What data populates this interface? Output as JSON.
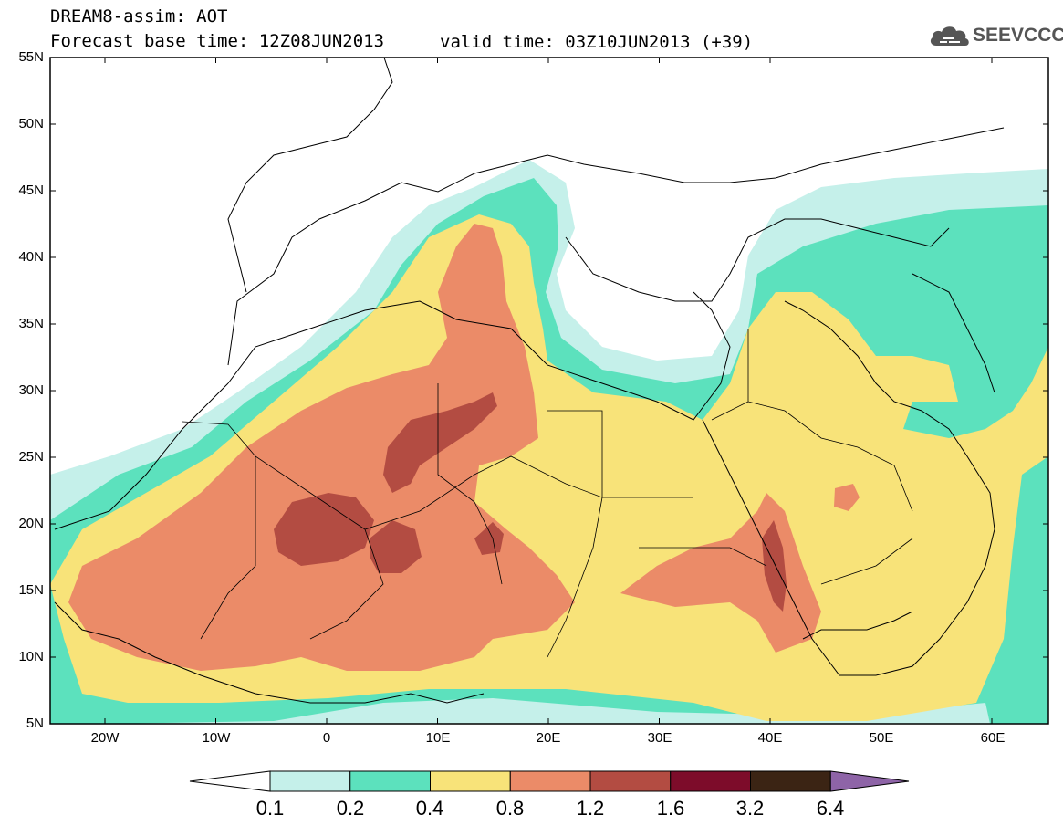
{
  "title": {
    "line1": "DREAM8-assim: AOT",
    "line2": "Forecast base time: 12Z08JUN2013",
    "valid": "valid time: 03Z10JUN2013 (+39)"
  },
  "logo": {
    "text": "SEEVCCC",
    "icon": "cloud-icon"
  },
  "map": {
    "lat_labels": [
      "55N",
      "50N",
      "45N",
      "40N",
      "35N",
      "30N",
      "25N",
      "20N",
      "15N",
      "10N",
      "5N"
    ],
    "lon_labels": [
      "20W",
      "10W",
      "0",
      "10E",
      "20E",
      "30E",
      "40E",
      "50E",
      "60E"
    ]
  },
  "colorbar": {
    "labels": [
      "0.1",
      "0.2",
      "0.4",
      "0.8",
      "1.2",
      "1.6",
      "3.2",
      "6.4"
    ],
    "colors": [
      "#ffffff",
      "#c5f0ea",
      "#5ce1bd",
      "#f8e379",
      "#eb8b68",
      "#b34c42",
      "#7d0c2a",
      "#3b2414",
      "#8e64a7"
    ]
  },
  "fields": {
    "c01": "#c5f0ea",
    "c02": "#5ce1bd",
    "c04": "#f8e379",
    "c08": "#eb8b68",
    "c12": "#b34c42"
  }
}
